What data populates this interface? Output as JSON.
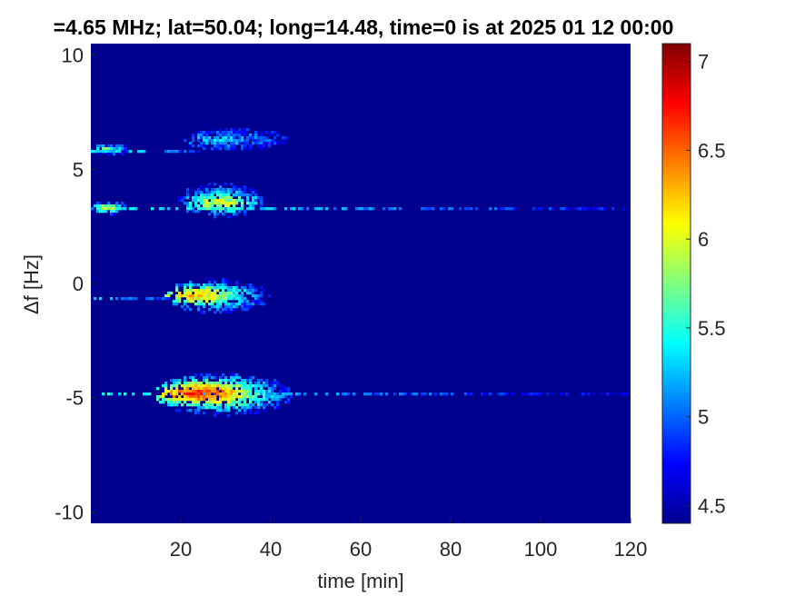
{
  "chart_data": {
    "type": "heatmap",
    "title": "=4.65 MHz;  lat=50.04; long=14.48, time=0 is at 2025 01 12 00:00",
    "xlabel": "time [min]",
    "ylabel": "Δf [Hz]",
    "xlim": [
      0,
      120
    ],
    "ylim": [
      -10.5,
      10.5
    ],
    "x_ticks": [
      20,
      40,
      60,
      80,
      100,
      120
    ],
    "x_tick_labels": [
      "20",
      "40",
      "60",
      "80",
      "100",
      "120"
    ],
    "y_ticks": [
      10,
      5,
      0,
      -5,
      -10
    ],
    "y_tick_labels": [
      "10",
      "5",
      "0",
      "-5",
      "-10"
    ],
    "colorbar": {
      "colormap": "jet",
      "range": [
        4.4,
        7.1
      ],
      "ticks": [
        7,
        6.5,
        6,
        5.5,
        5,
        4.5
      ],
      "tick_labels": [
        "7",
        "6.5",
        "6",
        "5.5",
        "5",
        "4.5"
      ]
    },
    "background_level": 4.4,
    "series": [
      {
        "center_df": 5.8,
        "base_line": {
          "df": 5.8,
          "x": [
            0,
            25
          ],
          "level": [
            5.6,
            5.0
          ]
        },
        "blobs": [
          {
            "x": [
              0,
              9
            ],
            "df": [
              5.6,
              6.1
            ],
            "peak_x": 2,
            "peak_df": 5.9,
            "peak": 6.0
          },
          {
            "x": [
              20,
              44
            ],
            "df": [
              5.8,
              6.8
            ],
            "peak_x": 28,
            "peak_df": 6.3,
            "peak": 5.5
          }
        ]
      },
      {
        "center_df": 3.3,
        "base_line": {
          "df": 3.3,
          "x": [
            0,
            120
          ],
          "level": [
            5.6,
            4.9
          ]
        },
        "blobs": [
          {
            "x": [
              0,
              9
            ],
            "df": [
              3.0,
              3.6
            ],
            "peak_x": 3,
            "peak_df": 3.3,
            "peak": 6.2
          },
          {
            "x": [
              19,
              39
            ],
            "df": [
              2.9,
              4.4
            ],
            "peak_x": 29,
            "peak_df": 3.5,
            "peak": 6.2
          }
        ]
      },
      {
        "center_df": -0.7,
        "base_line": {
          "df": -0.7,
          "x": [
            0,
            20
          ],
          "level": [
            5.4,
            5.0
          ]
        },
        "blobs": [
          {
            "x": [
              16,
              40
            ],
            "df": [
              -1.3,
              0.2
            ],
            "peak_x": 21,
            "peak_df": -0.5,
            "peak": 6.6
          }
        ]
      },
      {
        "center_df": -4.8,
        "base_line": {
          "df": -4.8,
          "x": [
            0,
            120
          ],
          "level": [
            5.6,
            4.8
          ]
        },
        "blobs": [
          {
            "x": [
              14,
              45
            ],
            "df": [
              -5.8,
              -3.9
            ],
            "peak_x": 22,
            "peak_df": -4.8,
            "peak": 7.0
          }
        ]
      }
    ]
  }
}
